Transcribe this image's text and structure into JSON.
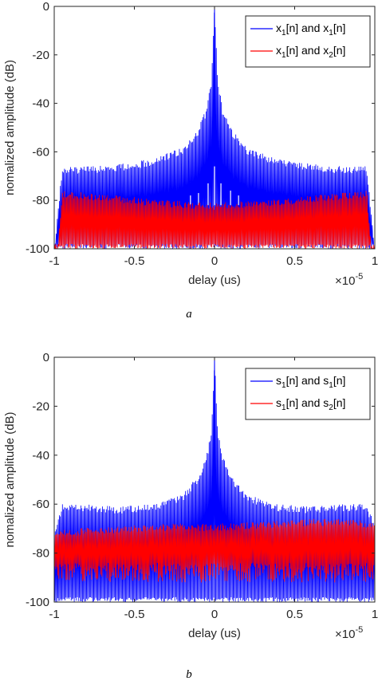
{
  "chart_data": [
    {
      "type": "line",
      "panel_label": "a",
      "xlabel": "delay (us)",
      "ylabel": "nomalized amplitude (dB)",
      "x_multiplier": "×10",
      "x_multiplier_exp": "-5",
      "xlim": [
        -1,
        1
      ],
      "ylim": [
        -100,
        0
      ],
      "xticks": [
        -1,
        -0.5,
        0,
        0.5,
        1
      ],
      "xtick_labels": [
        "-1",
        "-0.5",
        "0",
        "0.5",
        "1"
      ],
      "yticks": [
        0,
        -20,
        -40,
        -60,
        -80,
        -100
      ],
      "ytick_labels": [
        "0",
        "-20",
        "-40",
        "-60",
        "-80",
        "-100"
      ],
      "grid": false,
      "legend_position": "top-right",
      "series": [
        {
          "name_parts": [
            "x",
            "1",
            "[n] and x",
            "1",
            "[n]"
          ],
          "color": "#0000ff",
          "envelope": {
            "x": [
              -1,
              -0.95,
              -0.9,
              -0.8,
              -0.6,
              -0.4,
              -0.2,
              -0.1,
              -0.05,
              -0.02,
              0,
              0.02,
              0.05,
              0.1,
              0.2,
              0.4,
              0.6,
              0.8,
              0.9,
              0.95,
              1
            ],
            "upper": [
              -100,
              -66,
              -66,
              -66,
              -65,
              -63,
              -58,
              -50,
              -42,
              -30,
              0,
              -30,
              -42,
              -50,
              -58,
              -63,
              -65,
              -66,
              -66,
              -66,
              -100
            ],
            "lower": -100
          },
          "inner_peaks": [
            {
              "x": 0.0,
              "y": -66
            },
            {
              "x": 0.04,
              "y": -73
            },
            {
              "x": -0.04,
              "y": -73
            },
            {
              "x": 0.1,
              "y": -76
            },
            {
              "x": -0.1,
              "y": -77
            },
            {
              "x": 0.15,
              "y": -78
            },
            {
              "x": -0.15,
              "y": -78
            }
          ]
        },
        {
          "name_parts": [
            "x",
            "1",
            "[n] and x",
            "2",
            "[n]"
          ],
          "color": "#ff0000",
          "envelope": {
            "x": [
              -0.98,
              -0.95,
              -0.6,
              -0.3,
              0,
              0.3,
              0.6,
              0.95,
              0.98
            ],
            "upper": [
              -100,
              -76,
              -78,
              -80,
              -81,
              -80,
              -78,
              -76,
              -100
            ],
            "lower": -100
          }
        }
      ]
    },
    {
      "type": "line",
      "panel_label": "b",
      "xlabel": "delay (us)",
      "ylabel": "nomalized amplitude (dB)",
      "x_multiplier": "×10",
      "x_multiplier_exp": "-5",
      "xlim": [
        -1,
        1
      ],
      "ylim": [
        -100,
        0
      ],
      "xticks": [
        -1,
        -0.5,
        0,
        0.5,
        1
      ],
      "xtick_labels": [
        "-1",
        "-0.5",
        "0",
        "0.5",
        "1"
      ],
      "yticks": [
        0,
        -20,
        -40,
        -60,
        -80,
        -100
      ],
      "ytick_labels": [
        "0",
        "-20",
        "-40",
        "-60",
        "-80",
        "-100"
      ],
      "grid": false,
      "legend_position": "top-right",
      "series": [
        {
          "name_parts": [
            "s",
            "1",
            "[n] and s",
            "1",
            "[n]"
          ],
          "color": "#0000ff",
          "envelope": {
            "x": [
              -1,
              -0.95,
              -0.9,
              -0.8,
              -0.6,
              -0.4,
              -0.2,
              -0.1,
              -0.05,
              -0.02,
              0,
              0.02,
              0.05,
              0.1,
              0.2,
              0.4,
              0.6,
              0.8,
              0.9,
              0.95,
              1
            ],
            "upper": [
              -72,
              -60,
              -60,
              -60,
              -61,
              -60,
              -56,
              -48,
              -40,
              -30,
              0,
              -30,
              -40,
              -48,
              -56,
              -60,
              -61,
              -60,
              -60,
              -60,
              -68
            ],
            "lower": -100
          }
        },
        {
          "name_parts": [
            "s",
            "1",
            "[n] and s",
            "2",
            "[n]"
          ],
          "color": "#ff0000",
          "envelope": {
            "x": [
              -1,
              -0.9,
              -0.6,
              -0.3,
              0,
              0.3,
              0.6,
              0.9,
              1
            ],
            "upper": [
              -70,
              -70,
              -69,
              -68,
              -68,
              -67,
              -66,
              -66,
              -68
            ],
            "lower": -92
          }
        }
      ]
    }
  ]
}
